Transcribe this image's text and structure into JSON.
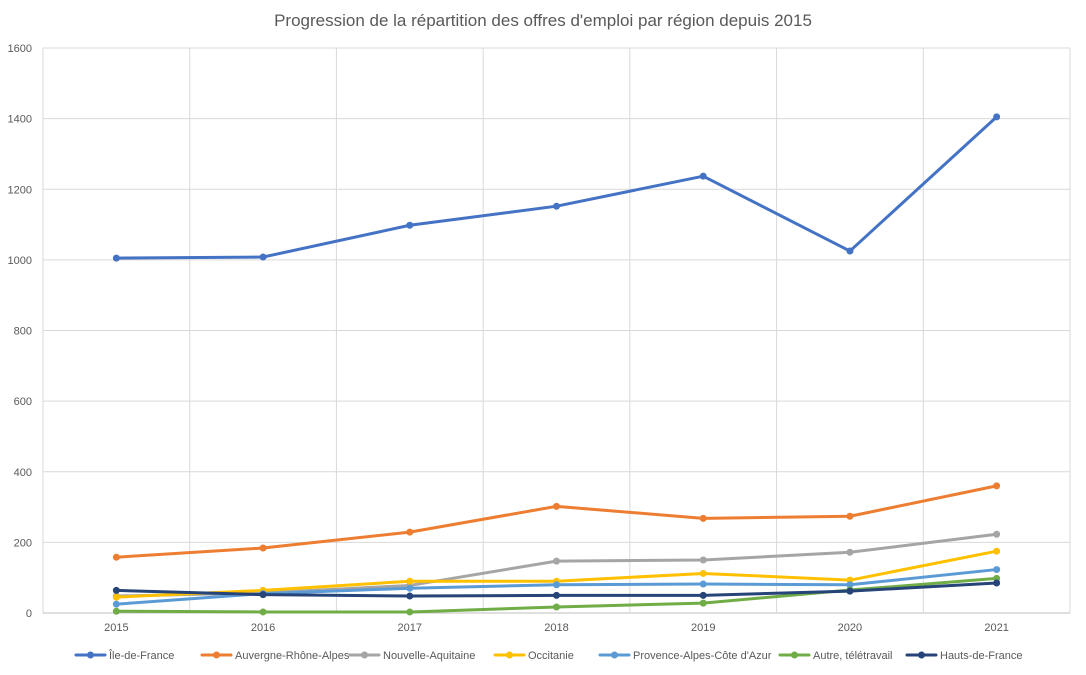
{
  "chart_data": {
    "type": "line",
    "title": "Progression de la répartition des offres d'emploi par région depuis 2015",
    "xlabel": "",
    "ylabel": "",
    "categories": [
      "2015",
      "2016",
      "2017",
      "2018",
      "2019",
      "2020",
      "2021"
    ],
    "ylim": [
      0,
      1600
    ],
    "yticks": [
      0,
      200,
      400,
      600,
      800,
      1000,
      1200,
      1400,
      1600
    ],
    "grid": true,
    "legend_position": "bottom",
    "series": [
      {
        "name": "Île-de-France",
        "color": "#4472C4",
        "values": [
          1005,
          1008,
          1098,
          1152,
          1237,
          1025,
          1405
        ]
      },
      {
        "name": "Auvergne-Rhône-Alpes",
        "color": "#ED7D31",
        "values": [
          158,
          184,
          229,
          302,
          268,
          274,
          360
        ]
      },
      {
        "name": "Nouvelle-Aquitaine",
        "color": "#A5A5A5",
        "values": [
          48,
          57,
          78,
          147,
          150,
          172,
          223
        ]
      },
      {
        "name": "Occitanie",
        "color": "#FFC000",
        "values": [
          45,
          64,
          90,
          90,
          112,
          93,
          175
        ]
      },
      {
        "name": "Provence-Alpes-Côte d'Azur",
        "color": "#5B9BD5",
        "values": [
          25,
          55,
          70,
          80,
          82,
          80,
          123
        ]
      },
      {
        "name": "Autre, télétravail",
        "color": "#70AD47",
        "values": [
          5,
          3,
          3,
          17,
          28,
          65,
          98
        ]
      },
      {
        "name": "Hauts-de-France",
        "color": "#264478",
        "values": [
          64,
          52,
          48,
          50,
          50,
          62,
          85
        ]
      }
    ]
  }
}
